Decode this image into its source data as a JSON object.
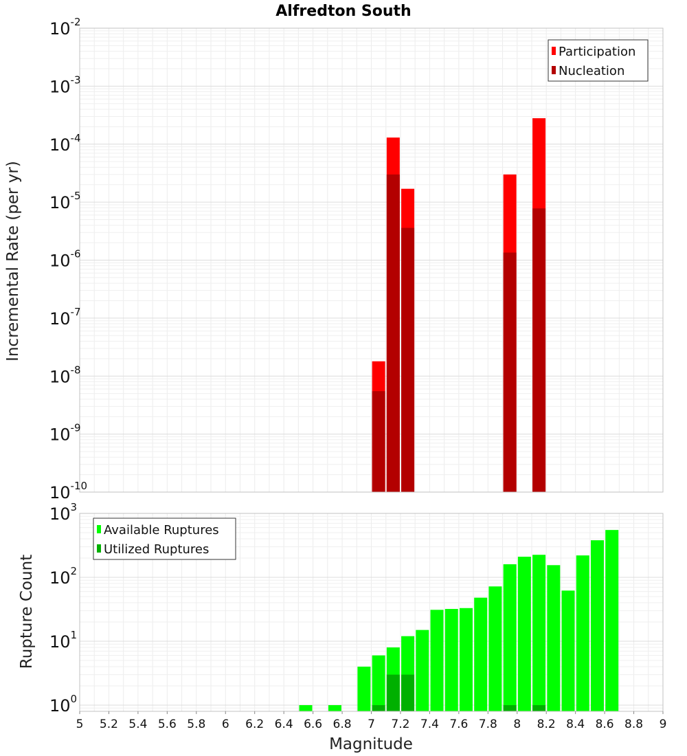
{
  "chart_data": [
    {
      "type": "bar",
      "title": "Alfredton South",
      "xlabel": "",
      "ylabel": "Incremental Rate (per yr)",
      "yscale": "log",
      "xlim": [
        5,
        9
      ],
      "ylim": [
        1e-10,
        0.01
      ],
      "ytick_labels": [
        {
          "base": "10",
          "exp": "-2"
        },
        {
          "base": "10",
          "exp": "-3"
        },
        {
          "base": "10",
          "exp": "-4"
        },
        {
          "base": "10",
          "exp": "-5"
        },
        {
          "base": "10",
          "exp": "-6"
        },
        {
          "base": "10",
          "exp": "-7"
        },
        {
          "base": "10",
          "exp": "-8"
        },
        {
          "base": "10",
          "exp": "-9"
        },
        {
          "base": "10",
          "exp": "-10"
        }
      ],
      "grid": true,
      "legend_position": "top-right",
      "x": [
        7.05,
        7.15,
        7.25,
        7.95,
        8.15
      ],
      "series": [
        {
          "name": "Participation",
          "color": "#ff0000",
          "values": [
            1.8e-08,
            0.00013,
            1.7e-05,
            3e-05,
            0.00028
          ]
        },
        {
          "name": "Nucleation",
          "color": "#b30000",
          "values": [
            5.5e-09,
            3e-05,
            3.6e-06,
            1.35e-06,
            7.8e-06
          ]
        }
      ]
    },
    {
      "type": "bar",
      "title": "",
      "xlabel": "Magnitude",
      "ylabel": "Rupture Count",
      "yscale": "log",
      "xlim": [
        5,
        9
      ],
      "ylim": [
        0.8,
        1000
      ],
      "ytick_labels": [
        {
          "base": "10",
          "exp": "3"
        },
        {
          "base": "10",
          "exp": "2"
        },
        {
          "base": "10",
          "exp": "1"
        },
        {
          "base": "10",
          "exp": "0"
        }
      ],
      "xtick_labels": [
        "5",
        "5.2",
        "5.4",
        "5.6",
        "5.8",
        "6",
        "6.2",
        "6.4",
        "6.6",
        "6.8",
        "7",
        "7.2",
        "7.4",
        "7.6",
        "7.8",
        "8",
        "8.2",
        "8.4",
        "8.6",
        "8.8",
        "9"
      ],
      "grid": true,
      "legend_position": "top-left",
      "x": [
        6.55,
        6.75,
        6.95,
        7.05,
        7.15,
        7.25,
        7.35,
        7.45,
        7.55,
        7.65,
        7.75,
        7.85,
        7.95,
        8.05,
        8.15,
        8.25,
        8.35,
        8.45,
        8.55,
        8.65
      ],
      "series": [
        {
          "name": "Available Ruptures",
          "color": "#00ff00",
          "values": [
            1,
            1,
            4,
            6,
            8,
            12,
            15,
            31,
            32,
            33,
            48,
            72,
            160,
            210,
            225,
            155,
            62,
            220,
            380,
            550
          ]
        },
        {
          "name": "Utilized Ruptures",
          "color": "#00b000",
          "values": [
            0,
            0,
            0,
            1,
            3,
            3,
            0,
            0,
            0,
            0,
            0,
            0,
            1,
            0,
            1,
            0,
            0,
            0,
            0,
            0
          ]
        }
      ]
    }
  ]
}
